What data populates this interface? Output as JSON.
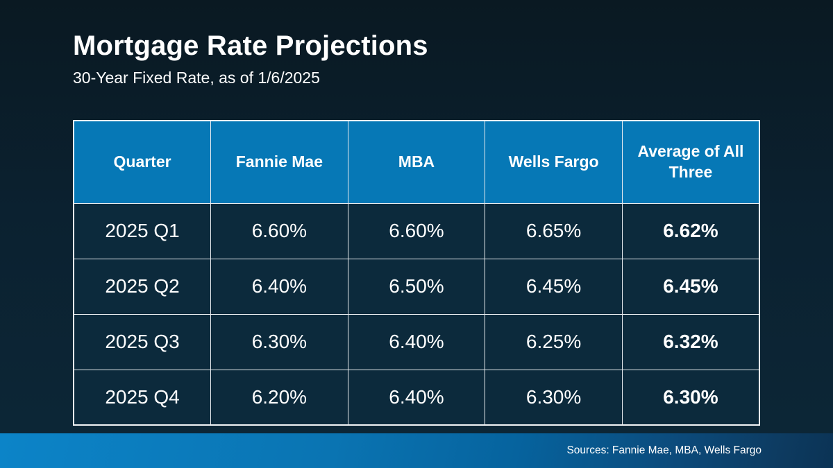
{
  "slide": {
    "title": "Mortgage Rate Projections",
    "subtitle": "30-Year Fixed Rate, as of 1/6/2025",
    "footer_source": "Sources: Fannie Mae, MBA, Wells Fargo"
  },
  "colors": {
    "background_top": "#0a1922",
    "background_bottom": "#0c2737",
    "table_header_blue": "#0678b6",
    "table_cell_bg": "#0c2a3c",
    "table_border": "#e9edf0",
    "footer_gradient_left": "#0c84c8",
    "footer_gradient_right": "#0b3355",
    "text": "#ffffff"
  },
  "chart_data": {
    "type": "table",
    "title": "Mortgage Rate Projections",
    "subtitle": "30-Year Fixed Rate, as of 1/6/2025",
    "columns": [
      "Quarter",
      "Fannie Mae",
      "MBA",
      "Wells Fargo",
      "Average of All Three"
    ],
    "rows": [
      [
        "2025 Q1",
        "6.60%",
        "6.60%",
        "6.65%",
        "6.62%"
      ],
      [
        "2025 Q2",
        "6.40%",
        "6.50%",
        "6.45%",
        "6.45%"
      ],
      [
        "2025 Q3",
        "6.30%",
        "6.40%",
        "6.25%",
        "6.32%"
      ],
      [
        "2025 Q4",
        "6.20%",
        "6.40%",
        "6.30%",
        "6.30%"
      ]
    ],
    "notes": "Average of All Three column rendered in bold; source note shown in footer bar",
    "source": "Sources: Fannie Mae, MBA, Wells Fargo"
  }
}
